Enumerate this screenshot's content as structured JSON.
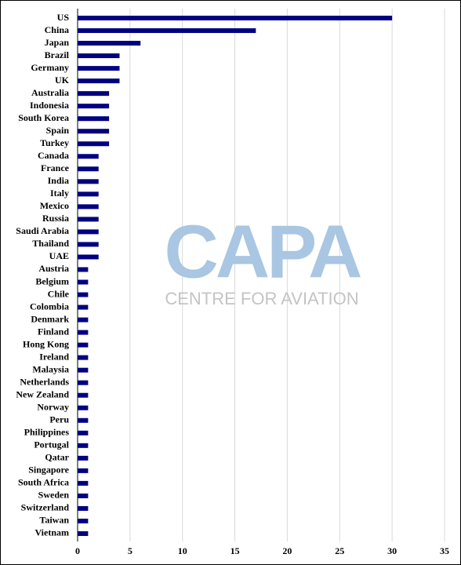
{
  "chart_data": {
    "type": "hbar",
    "categories": [
      "US",
      "China",
      "Japan",
      "Brazil",
      "Germany",
      "UK",
      "Australia",
      "Indonesia",
      "South Korea",
      "Spain",
      "Turkey",
      "Canada",
      "France",
      "India",
      "Italy",
      "Mexico",
      "Russia",
      "Saudi Arabia",
      "Thailand",
      "UAE",
      "Austria",
      "Belgium",
      "Chile",
      "Colombia",
      "Denmark",
      "Finland",
      "Hong Kong",
      "Ireland",
      "Malaysia",
      "Netherlands",
      "New Zealand",
      "Norway",
      "Peru",
      "Philippines",
      "Portugal",
      "Qatar",
      "Singapore",
      "South Africa",
      "Sweden",
      "Switzerland",
      "Taiwan",
      "Vietnam"
    ],
    "values": [
      30,
      17,
      6,
      4,
      4,
      4,
      3,
      3,
      3,
      3,
      3,
      2,
      2,
      2,
      2,
      2,
      2,
      2,
      2,
      2,
      1,
      1,
      1,
      1,
      1,
      1,
      1,
      1,
      1,
      1,
      1,
      1,
      1,
      1,
      1,
      1,
      1,
      1,
      1,
      1,
      1,
      1
    ],
    "color": "#000080",
    "xlim": [
      0,
      35
    ],
    "xticks": [
      0,
      5,
      10,
      15,
      20,
      25,
      30,
      35
    ],
    "grid": true,
    "watermark": {
      "logo": "CAPA",
      "text": "CENTRE FOR AVIATION"
    }
  }
}
